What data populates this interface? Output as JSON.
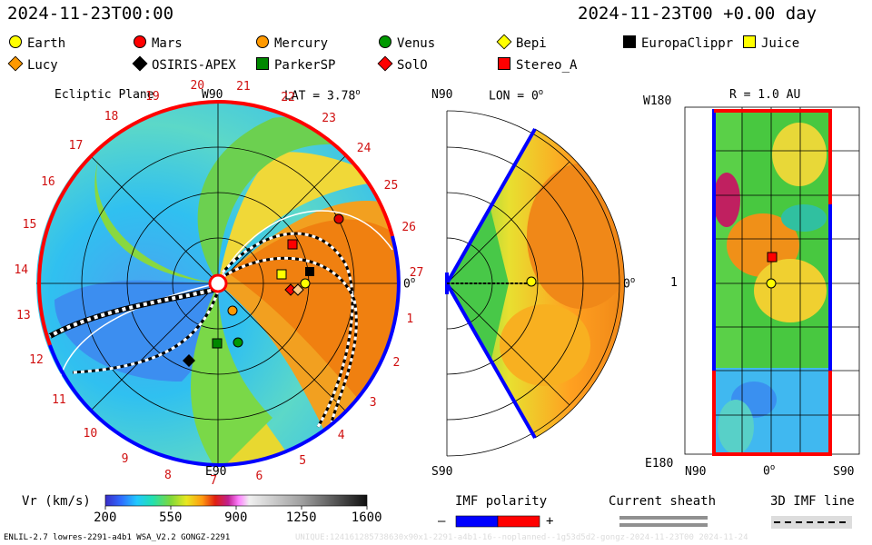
{
  "header": {
    "datetime_left": "2024-11-23T00:00",
    "datetime_right": "2024-11-23T00 +0.00 day"
  },
  "legend": {
    "items": [
      {
        "name": "Earth",
        "shape": "circle",
        "fill": "#ffff00"
      },
      {
        "name": "Mars",
        "shape": "circle",
        "fill": "#ff0000"
      },
      {
        "name": "Mercury",
        "shape": "circle",
        "fill": "#ff9900"
      },
      {
        "name": "Venus",
        "shape": "circle",
        "fill": "#009900"
      },
      {
        "name": "Bepi",
        "shape": "diamond",
        "fill": "#ffff00"
      },
      {
        "name": "EuropaClippr",
        "shape": "square",
        "fill": "#000000"
      },
      {
        "name": "Juice",
        "shape": "square",
        "fill": "#ffff00"
      },
      {
        "name": "Lucy",
        "shape": "diamond",
        "fill": "#ff9900"
      },
      {
        "name": "OSIRIS-APEX",
        "shape": "diamond",
        "fill": "#000000"
      },
      {
        "name": "ParkerSP",
        "shape": "square",
        "fill": "#008800"
      },
      {
        "name": "SolO",
        "shape": "diamond",
        "fill": "#ff0000"
      },
      {
        "name": "Stereo_A",
        "shape": "square",
        "fill": "#ff0000"
      }
    ]
  },
  "panels": {
    "ecliptic": {
      "title": "Ecliptic Plane",
      "top_label": "W90",
      "lat_label": "LAT = 3.78",
      "lat_sup": "o",
      "right_label": "0",
      "right_sup": "o",
      "bottom_label": "E90",
      "carrington_ticks": [
        "1",
        "2",
        "3",
        "4",
        "5",
        "6",
        "7",
        "8",
        "9",
        "10",
        "11",
        "12",
        "13",
        "14",
        "15",
        "16",
        "17",
        "18",
        "19",
        "20",
        "21",
        "22",
        "23",
        "24",
        "25",
        "26",
        "27"
      ]
    },
    "meridional": {
      "top_label": "N90",
      "lon_label": "LON = 0",
      "lon_sup": "o",
      "right_label": "0",
      "right_sup": "o",
      "bottom_label": "S90"
    },
    "map": {
      "r_label": "R = 1.0 AU",
      "top_left": "W180",
      "mid_left": "1",
      "bottom_left": "E180",
      "x_left": "N90",
      "x_mid": "0",
      "x_mid_sup": "o",
      "x_right": "S90"
    }
  },
  "colorbar": {
    "label": "Vr (km/s)",
    "ticks": [
      "200",
      "550",
      "900",
      "1250",
      "1600"
    ],
    "range": [
      200,
      1600
    ]
  },
  "imf_polarity": {
    "label": "IMF polarity",
    "minus": "–",
    "plus": "+",
    "colors": [
      "#0000ff",
      "#ff0000"
    ]
  },
  "current_sheath": {
    "label": "Current sheath"
  },
  "imf_line": {
    "label": "3D IMF line"
  },
  "footer": {
    "left": "ENLIL-2.7 lowres-2291-a4b1 WSA_V2.2 GONGZ-2291",
    "right": "UNIQUE:124161285738630x90x1-2291-a4b1-16--noplanned--1g53d5d2-gongz-2024-11-23T00   2024-11-24"
  },
  "chart_data": {
    "type": "heatmap",
    "variable": "Vr (km/s)",
    "value_range": [
      200,
      1600
    ],
    "bodies_ecliptic": [
      {
        "name": "Earth",
        "lon_deg": 0,
        "r_au": 1.0
      },
      {
        "name": "Mars",
        "lon_deg": 35,
        "r_au": 1.45
      }
    ]
  }
}
